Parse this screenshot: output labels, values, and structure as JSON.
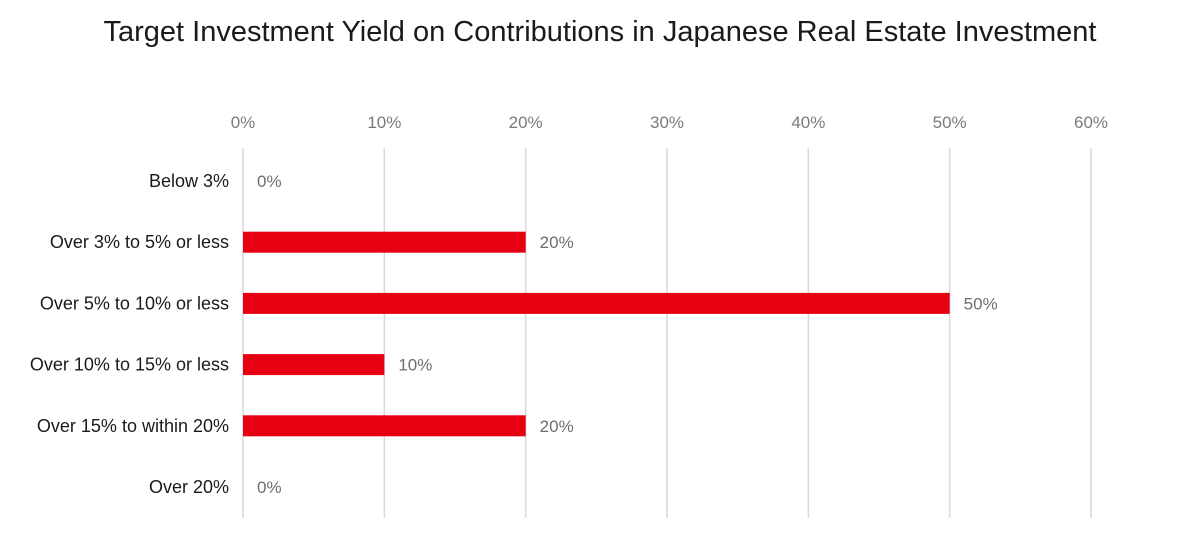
{
  "chart_data": {
    "type": "bar",
    "orientation": "horizontal",
    "title": "Target Investment Yield on Contributions in Japanese Real Estate Investment",
    "categories": [
      "Below 3%",
      "Over 3% to 5% or less",
      "Over 5% to 10% or less",
      "Over 10% to 15% or less",
      "Over 15% to within 20%",
      "Over 20%"
    ],
    "values": [
      0,
      20,
      50,
      10,
      20,
      0
    ],
    "value_labels": [
      "0%",
      "20%",
      "50%",
      "10%",
      "20%",
      "0%"
    ],
    "xlim": [
      0,
      60
    ],
    "x_ticks": [
      0,
      10,
      20,
      30,
      40,
      50,
      60
    ],
    "x_tick_labels": [
      "0%",
      "10%",
      "20%",
      "30%",
      "40%",
      "50%",
      "60%"
    ],
    "x_axis_position": "top",
    "grid": true,
    "legend": "none",
    "colors": {
      "bar": "#e60012",
      "grid": "#d9d9d9",
      "tick_text": "#7a7a7a",
      "label_text": "#1a1a1a"
    }
  }
}
